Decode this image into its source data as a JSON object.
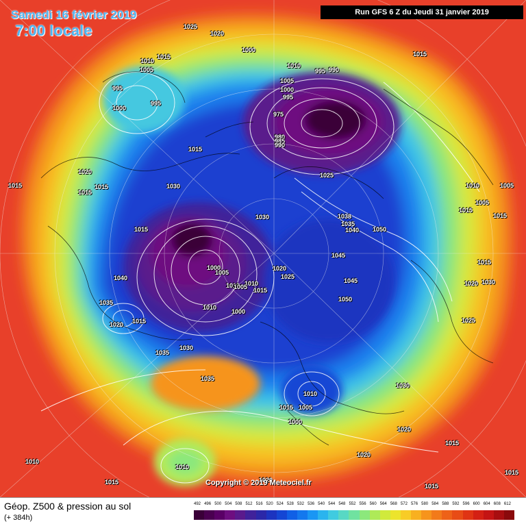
{
  "header": {
    "date": "Samedi 16 février 2019",
    "time": "7:00 locale",
    "run": "Run GFS 6 Z du Jeudi 31 janvier 2019"
  },
  "copyright": "Copyright © 2019 Meteociel.fr",
  "footer": {
    "title": "Géop. Z500 & pression au sol",
    "subtitle": "(+ 384h)"
  },
  "legend": {
    "ticks": [
      "492",
      "496",
      "500",
      "504",
      "508",
      "512",
      "516",
      "520",
      "524",
      "528",
      "532",
      "536",
      "540",
      "544",
      "548",
      "552",
      "556",
      "560",
      "564",
      "568",
      "572",
      "576",
      "580",
      "584",
      "588",
      "592",
      "596",
      "600",
      "604",
      "608",
      "612"
    ],
    "colors": [
      "#3a0038",
      "#4a0050",
      "#5a0066",
      "#6e0e80",
      "#5a1a8c",
      "#40229a",
      "#2b28a8",
      "#1c34c0",
      "#1446d4",
      "#1060e6",
      "#1478ee",
      "#1a96f4",
      "#2ab4ee",
      "#40cbe0",
      "#58d8c4",
      "#70e2a0",
      "#8ce87c",
      "#aeea58",
      "#d0ea3c",
      "#ece42c",
      "#f8cc26",
      "#f8b020",
      "#f6941c",
      "#f27a1a",
      "#ee6218",
      "#e84c16",
      "#e03414",
      "#d42014",
      "#c41414",
      "#a80e10",
      "#8a0a0c"
    ]
  },
  "pressure_labels": [
    {
      "text": "1025"
    },
    {
      "text": "1020"
    },
    {
      "text": "1000"
    },
    {
      "text": "1015"
    },
    {
      "text": "1010"
    },
    {
      "text": "1005"
    },
    {
      "text": "995"
    },
    {
      "text": "1000"
    },
    {
      "text": "995"
    },
    {
      "text": "1015"
    },
    {
      "text": "1010"
    },
    {
      "text": "1005"
    },
    {
      "text": "995"
    },
    {
      "text": "990"
    },
    {
      "text": "1000"
    },
    {
      "text": "995"
    },
    {
      "text": "975"
    },
    {
      "text": "980"
    },
    {
      "text": "985"
    },
    {
      "text": "990"
    },
    {
      "text": "1015"
    },
    {
      "text": "1025"
    },
    {
      "text": "1020"
    },
    {
      "text": "1015"
    },
    {
      "text": "1015"
    },
    {
      "text": "1015"
    },
    {
      "text": "1030"
    },
    {
      "text": "1015"
    },
    {
      "text": "1030"
    },
    {
      "text": "1038"
    },
    {
      "text": "1035"
    },
    {
      "text": "1040"
    },
    {
      "text": "1050"
    },
    {
      "text": "1010"
    },
    {
      "text": "1005"
    },
    {
      "text": "1005"
    },
    {
      "text": "1015"
    },
    {
      "text": "1015"
    },
    {
      "text": "1000"
    },
    {
      "text": "1005"
    },
    {
      "text": "1020"
    },
    {
      "text": "1025"
    },
    {
      "text": "1045"
    },
    {
      "text": "1040"
    },
    {
      "text": "1045"
    },
    {
      "text": "1015"
    },
    {
      "text": "1020"
    },
    {
      "text": "1030"
    },
    {
      "text": "1010"
    },
    {
      "text": "1010"
    },
    {
      "text": "1005"
    },
    {
      "text": "1015"
    },
    {
      "text": "1050"
    },
    {
      "text": "1035"
    },
    {
      "text": "1010"
    },
    {
      "text": "1015"
    },
    {
      "text": "1020"
    },
    {
      "text": "1000"
    },
    {
      "text": "1025"
    },
    {
      "text": "1035"
    },
    {
      "text": "1030"
    },
    {
      "text": "1035"
    },
    {
      "text": "1030"
    },
    {
      "text": "1010"
    },
    {
      "text": "1015"
    },
    {
      "text": "1005"
    },
    {
      "text": "1000"
    },
    {
      "text": "1020"
    },
    {
      "text": "1020"
    },
    {
      "text": "1015"
    },
    {
      "text": "1010"
    },
    {
      "text": "1015"
    },
    {
      "text": "1010"
    },
    {
      "text": "1015"
    },
    {
      "text": "1015"
    },
    {
      "text": "1020"
    }
  ]
}
